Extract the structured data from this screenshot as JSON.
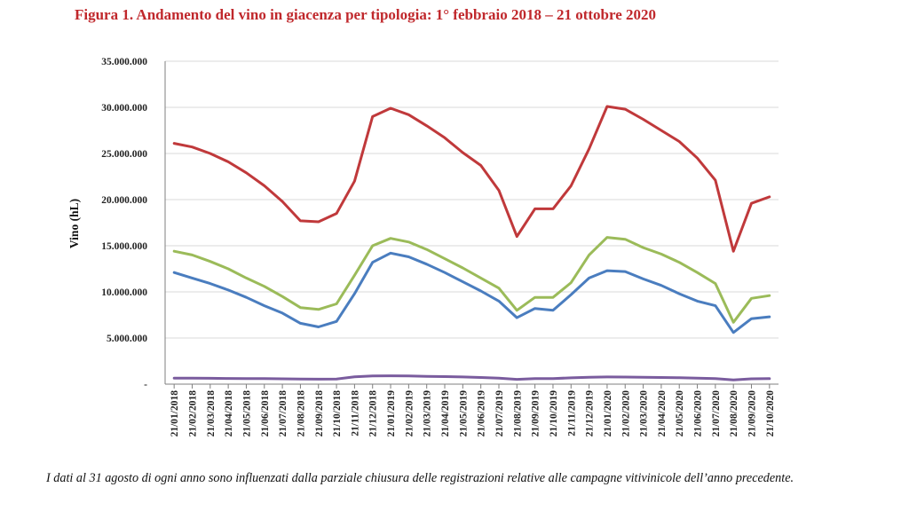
{
  "header": {
    "title": "Figura 1. Andamento del vino in giacenza per tipologia: 1° febbraio 2018 – 21 ottobre 2020"
  },
  "footer": {
    "note": "I dati al 31 agosto di ogni anno sono influenzati dalla parziale chiusura delle registrazioni relative alle campagne vitivinicole dell’anno precedente."
  },
  "colors": {
    "red": "#c0393b",
    "green": "#9bbb59",
    "blue": "#4a7dbf",
    "purple": "#7a5c9e",
    "grid": "#d9d9d9"
  },
  "chart_data": {
    "type": "line",
    "title": "Figura 1. Andamento del vino in giacenza per tipologia: 1° febbraio 2018 – 21 ottobre 2020",
    "ylabel": "Vino (hL)",
    "xlabel": "",
    "ylim": [
      0,
      35000000
    ],
    "yticks": [
      0,
      5000000,
      10000000,
      15000000,
      20000000,
      25000000,
      30000000,
      35000000
    ],
    "ytick_labels": [
      "-",
      "5.000.000",
      "10.000.000",
      "15.000.000",
      "20.000.000",
      "25.000.000",
      "30.000.000",
      "35.000.000"
    ],
    "grid": "horizontal",
    "legend": "none",
    "categories": [
      "21/01/2018",
      "21/02/2018",
      "21/03/2018",
      "21/04/2018",
      "21/05/2018",
      "21/06/2018",
      "21/07/2018",
      "21/08/2018",
      "21/09/2018",
      "21/10/2018",
      "21/11/2018",
      "21/12/2018",
      "21/01/2019",
      "21/02/2019",
      "21/03/2019",
      "21/04/2019",
      "21/05/2019",
      "21/06/2019",
      "21/07/2019",
      "21/08/2019",
      "21/09/2019",
      "21/10/2019",
      "21/11/2019",
      "21/12/2019",
      "21/01/2020",
      "21/02/2020",
      "21/03/2020",
      "21/04/2020",
      "21/05/2020",
      "21/06/2020",
      "21/07/2020",
      "21/08/2020",
      "21/09/2020",
      "21/10/2020"
    ],
    "series": [
      {
        "color": "#c0393b",
        "values": [
          26100000,
          25700000,
          25000000,
          24100000,
          22900000,
          21500000,
          19800000,
          17700000,
          17600000,
          18500000,
          22000000,
          29000000,
          29900000,
          29200000,
          28000000,
          26700000,
          25100000,
          23700000,
          21000000,
          16000000,
          19000000,
          19000000,
          21500000,
          25500000,
          30100000,
          29800000,
          28700000,
          27500000,
          26300000,
          24500000,
          22100000,
          14400000,
          19600000,
          20300000
        ]
      },
      {
        "color": "#9bbb59",
        "values": [
          14400000,
          14000000,
          13300000,
          12500000,
          11500000,
          10600000,
          9500000,
          8300000,
          8100000,
          8700000,
          11800000,
          15000000,
          15800000,
          15400000,
          14600000,
          13600000,
          12600000,
          11500000,
          10400000,
          8000000,
          9400000,
          9400000,
          11000000,
          14000000,
          15900000,
          15700000,
          14800000,
          14100000,
          13200000,
          12100000,
          10900000,
          6700000,
          9300000,
          9600000
        ]
      },
      {
        "color": "#4a7dbf",
        "values": [
          12100000,
          11500000,
          10900000,
          10200000,
          9400000,
          8500000,
          7700000,
          6600000,
          6200000,
          6800000,
          9800000,
          13200000,
          14200000,
          13800000,
          13000000,
          12100000,
          11100000,
          10100000,
          9000000,
          7200000,
          8200000,
          8000000,
          9700000,
          11500000,
          12300000,
          12200000,
          11400000,
          10700000,
          9800000,
          9000000,
          8500000,
          5600000,
          7100000,
          7300000
        ]
      },
      {
        "color": "#7a5c9e",
        "values": [
          650000,
          640000,
          630000,
          620000,
          610000,
          600000,
          580000,
          550000,
          540000,
          560000,
          800000,
          880000,
          900000,
          880000,
          850000,
          820000,
          780000,
          720000,
          650000,
          520000,
          600000,
          610000,
          680000,
          750000,
          780000,
          770000,
          750000,
          720000,
          690000,
          650000,
          600000,
          450000,
          580000,
          600000
        ]
      }
    ]
  }
}
